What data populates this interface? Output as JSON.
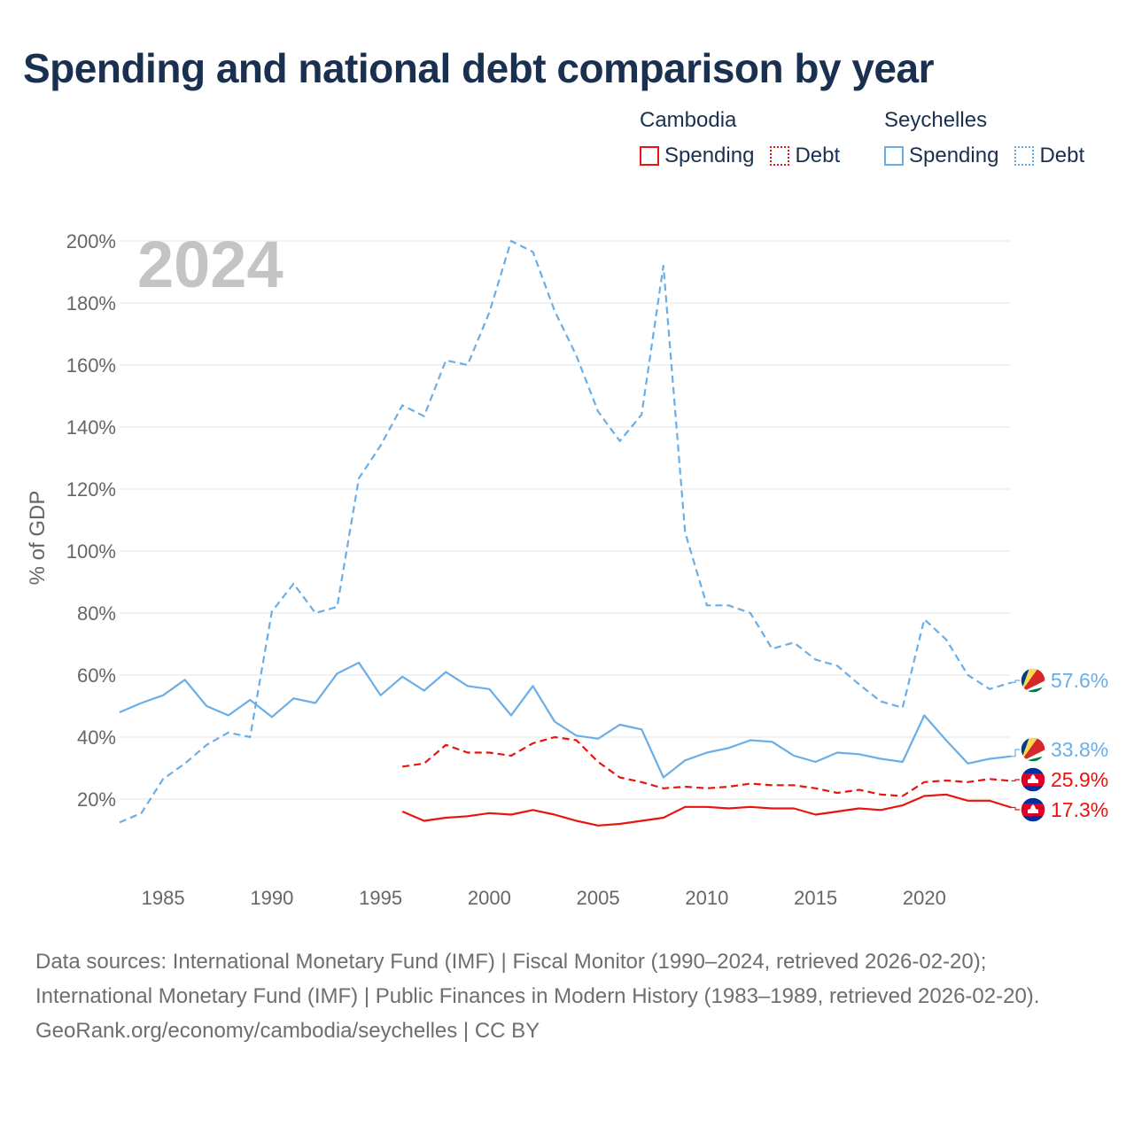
{
  "title": "Spending and national debt comparison by year",
  "legend": {
    "groups": [
      {
        "name": "Cambodia",
        "color": "#e8140f",
        "items": [
          "Spending",
          "Debt"
        ]
      },
      {
        "name": "Seychelles",
        "color": "#6aaee8",
        "items": [
          "Spending",
          "Debt"
        ]
      }
    ]
  },
  "year_watermark": "2024",
  "footer": {
    "sources": "Data sources: International Monetary Fund (IMF) | Fiscal Monitor (1990–2024, retrieved 2026-02-20); International Monetary Fund (IMF) | Public Finances in Modern History (1983–1989, retrieved 2026-02-20).",
    "credit": "GeoRank.org/economy/cambodia/seychelles | CC BY"
  },
  "chart_data": {
    "type": "line",
    "title": "Spending and national debt comparison by year",
    "xlabel": "",
    "ylabel": "% of GDP",
    "xlim": [
      1983,
      2024
    ],
    "ylim": [
      0,
      200
    ],
    "x_ticks": [
      1985,
      1990,
      1995,
      2000,
      2005,
      2010,
      2015,
      2020
    ],
    "y_ticks": [
      20,
      40,
      60,
      80,
      100,
      120,
      140,
      160,
      180,
      200
    ],
    "y_tick_labels": [
      "20%",
      "40%",
      "60%",
      "80%",
      "100%",
      "120%",
      "140%",
      "160%",
      "180%",
      "200%"
    ],
    "grid": true,
    "series": [
      {
        "name": "Seychelles Debt",
        "country": "Seychelles",
        "metric": "Debt",
        "style": "dashed",
        "color": "#6aaee8",
        "end_label": "57.6%",
        "flag": "seychelles",
        "x": [
          1983,
          1984,
          1985,
          1986,
          1987,
          1988,
          1989,
          1990,
          1991,
          1992,
          1993,
          1994,
          1995,
          1996,
          1997,
          1998,
          1999,
          2000,
          2001,
          2002,
          2003,
          2004,
          2005,
          2006,
          2007,
          2008,
          2009,
          2010,
          2011,
          2012,
          2013,
          2014,
          2015,
          2016,
          2017,
          2018,
          2019,
          2020,
          2021,
          2022,
          2023,
          2024
        ],
        "values": [
          12.5,
          15.5,
          26.5,
          31.5,
          37.5,
          41.5,
          40,
          80.5,
          89.5,
          80,
          82,
          123.5,
          134,
          147,
          143.5,
          161.5,
          160,
          177,
          200,
          196.5,
          177.5,
          163,
          145,
          135.5,
          144,
          192,
          106,
          82.5,
          82.5,
          80,
          68.5,
          70.5,
          65,
          63,
          57,
          51.5,
          49.5,
          78,
          71.5,
          60,
          55.5,
          57.6
        ]
      },
      {
        "name": "Seychelles Spending",
        "country": "Seychelles",
        "metric": "Spending",
        "style": "solid",
        "color": "#6aaee8",
        "end_label": "33.8%",
        "flag": "seychelles",
        "x": [
          1983,
          1984,
          1985,
          1986,
          1987,
          1988,
          1989,
          1990,
          1991,
          1992,
          1993,
          1994,
          1995,
          1996,
          1997,
          1998,
          1999,
          2000,
          2001,
          2002,
          2003,
          2004,
          2005,
          2006,
          2007,
          2008,
          2009,
          2010,
          2011,
          2012,
          2013,
          2014,
          2015,
          2016,
          2017,
          2018,
          2019,
          2020,
          2021,
          2022,
          2023,
          2024
        ],
        "values": [
          48,
          51,
          53.5,
          58.5,
          50,
          47,
          52,
          46.5,
          52.5,
          51,
          60.5,
          64,
          53.5,
          59.5,
          55,
          61,
          56.5,
          55.5,
          47,
          56.5,
          45,
          40.5,
          39.5,
          44,
          42.5,
          27,
          32.5,
          35,
          36.5,
          39,
          38.5,
          34,
          32,
          35,
          34.5,
          33,
          32,
          47,
          39,
          31.5,
          33,
          33.8
        ]
      },
      {
        "name": "Cambodia Debt",
        "country": "Cambodia",
        "metric": "Debt",
        "style": "dashed",
        "color": "#e8140f",
        "end_label": "25.9%",
        "flag": "cambodia",
        "x": [
          1996,
          1997,
          1998,
          1999,
          2000,
          2001,
          2002,
          2003,
          2004,
          2005,
          2006,
          2007,
          2008,
          2009,
          2010,
          2011,
          2012,
          2013,
          2014,
          2015,
          2016,
          2017,
          2018,
          2019,
          2020,
          2021,
          2022,
          2023,
          2024
        ],
        "values": [
          30.5,
          31.5,
          37.5,
          35,
          35,
          34,
          38,
          40,
          39,
          32,
          27,
          25.5,
          23.5,
          24,
          23.5,
          24,
          25,
          24.5,
          24.5,
          23.5,
          22,
          23,
          21.5,
          21,
          25.5,
          26,
          25.5,
          26.5,
          25.9
        ]
      },
      {
        "name": "Cambodia Spending",
        "country": "Cambodia",
        "metric": "Spending",
        "style": "solid",
        "color": "#e8140f",
        "end_label": "17.3%",
        "flag": "cambodia",
        "x": [
          1996,
          1997,
          1998,
          1999,
          2000,
          2001,
          2002,
          2003,
          2004,
          2005,
          2006,
          2007,
          2008,
          2009,
          2010,
          2011,
          2012,
          2013,
          2014,
          2015,
          2016,
          2017,
          2018,
          2019,
          2020,
          2021,
          2022,
          2023,
          2024
        ],
        "values": [
          16,
          13,
          14,
          14.5,
          15.5,
          15,
          16.5,
          15,
          13,
          11.5,
          12,
          13,
          14,
          17.5,
          17.5,
          17,
          17.5,
          17,
          17,
          15,
          16,
          17,
          16.5,
          18,
          21,
          21.5,
          19.5,
          19.5,
          17.3
        ]
      }
    ]
  }
}
